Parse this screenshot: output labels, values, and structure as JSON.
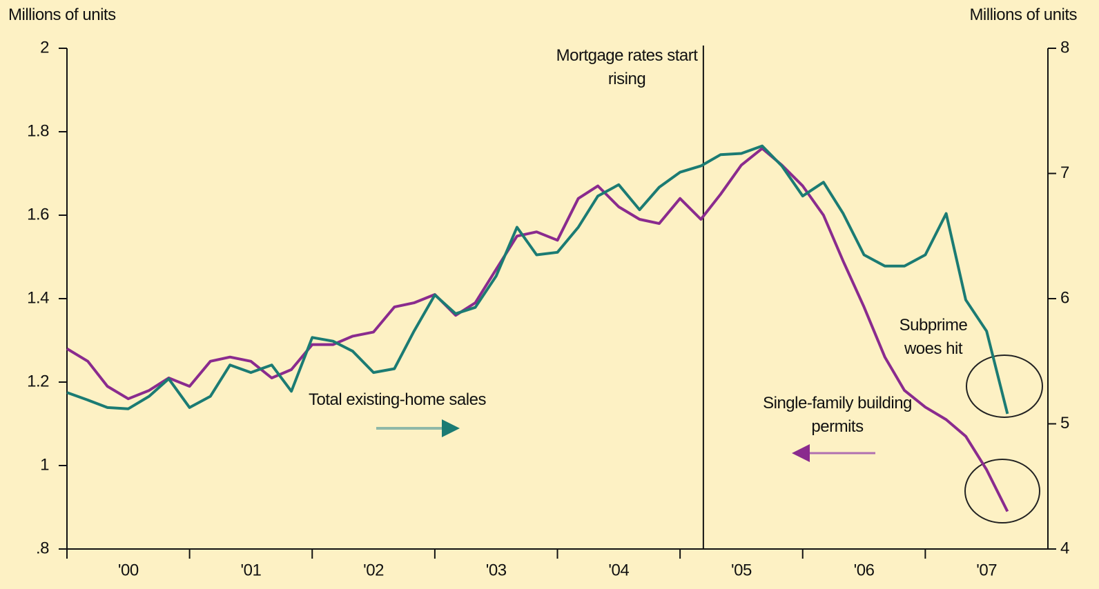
{
  "chart_data": {
    "type": "line",
    "y_label": "Millions of units",
    "y2_label": "Millions of units",
    "annotations": [
      "Mortgage rates start rising",
      "Subprime woes hit"
    ],
    "vline_x": 2005.19,
    "xlim": [
      2000,
      2008
    ],
    "xticks": [
      {
        "value": 2000.5,
        "label": "'00"
      },
      {
        "value": 2001.5,
        "label": "'01"
      },
      {
        "value": 2002.5,
        "label": "'02"
      },
      {
        "value": 2003.5,
        "label": "'03"
      },
      {
        "value": 2004.5,
        "label": "'04"
      },
      {
        "value": 2005.5,
        "label": "'05"
      },
      {
        "value": 2006.5,
        "label": "'06"
      },
      {
        "value": 2007.5,
        "label": "'07"
      }
    ],
    "ylim": [
      0.8,
      2
    ],
    "yticks": [
      {
        "value": 0.8,
        "label": ".8"
      },
      1,
      1.2,
      1.4,
      1.6,
      1.8,
      2
    ],
    "y2lim": [
      4,
      8
    ],
    "y2ticks": [
      4,
      5,
      6,
      7,
      8
    ],
    "x": [
      2000,
      2000.17,
      2000.33,
      2000.5,
      2000.67,
      2000.83,
      2001,
      2001.17,
      2001.33,
      2001.5,
      2001.67,
      2001.83,
      2002,
      2002.17,
      2002.33,
      2002.5,
      2002.67,
      2002.83,
      2003,
      2003.17,
      2003.33,
      2003.5,
      2003.67,
      2003.83,
      2004,
      2004.17,
      2004.33,
      2004.5,
      2004.67,
      2004.83,
      2005,
      2005.17,
      2005.33,
      2005.5,
      2005.67,
      2005.83,
      2006,
      2006.17,
      2006.33,
      2006.5,
      2006.67,
      2006.83,
      2007,
      2007.17,
      2007.33,
      2007.5,
      2007.67
    ],
    "series": [
      {
        "name": "Single-family building permits",
        "color": "#8a2b8e",
        "axis": "y",
        "values": [
          1.28,
          1.25,
          1.19,
          1.16,
          1.18,
          1.21,
          1.19,
          1.25,
          1.26,
          1.25,
          1.21,
          1.23,
          1.29,
          1.29,
          1.31,
          1.32,
          1.38,
          1.39,
          1.41,
          1.36,
          1.39,
          1.47,
          1.55,
          1.56,
          1.54,
          1.64,
          1.67,
          1.62,
          1.59,
          1.58,
          1.64,
          1.59,
          1.65,
          1.72,
          1.76,
          1.72,
          1.67,
          1.6,
          1.49,
          1.38,
          1.26,
          1.18,
          1.14,
          1.11,
          1.07,
          0.99,
          0.89
        ]
      },
      {
        "name": "Total existing-home sales",
        "color": "#1b7b73",
        "axis": "y2",
        "values": [
          5.25,
          5.19,
          5.13,
          5.12,
          5.22,
          5.36,
          5.13,
          5.22,
          5.47,
          5.41,
          5.47,
          5.26,
          5.69,
          5.66,
          5.58,
          5.41,
          5.44,
          5.74,
          6.03,
          5.88,
          5.93,
          6.18,
          6.57,
          6.35,
          6.37,
          6.57,
          6.82,
          6.91,
          6.71,
          6.89,
          7.01,
          7.06,
          7.15,
          7.16,
          7.22,
          7.06,
          6.82,
          6.93,
          6.68,
          6.35,
          6.26,
          6.26,
          6.35,
          6.68,
          5.99,
          5.74,
          5.08
        ]
      }
    ]
  }
}
